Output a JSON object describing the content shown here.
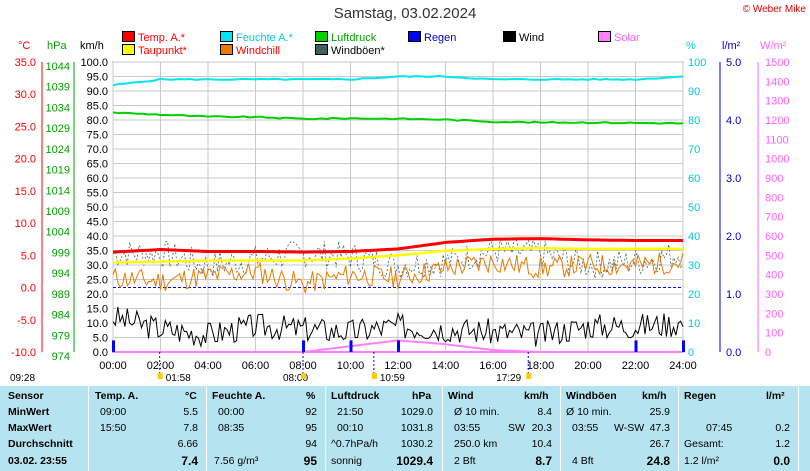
{
  "title": "Samstag, 03.02.2024",
  "copyright": "© Weber Mike",
  "legend": [
    {
      "label": "Temp. A.*",
      "color": "#ff0000",
      "text_color": "#ff0000"
    },
    {
      "label": "Feuchte A.*",
      "color": "#00e5ee",
      "text_color": "#00c8e0"
    },
    {
      "label": "Luftdruck",
      "color": "#00d000",
      "text_color": "#00a000"
    },
    {
      "label": "Regen",
      "color": "#0000ff",
      "text_color": "#0000d0"
    },
    {
      "label": "Wind",
      "color": "#000000",
      "text_color": "#000000"
    },
    {
      "label": "Solar",
      "color": "#ff80ff",
      "text_color": "#ff60ff"
    },
    {
      "label": "Taupunkt*",
      "color": "#ffff00",
      "text_color": "#ff0000"
    },
    {
      "label": "Windchill",
      "color": "#e87c00",
      "text_color": "#ff0000"
    },
    {
      "label": "Windböen*",
      "color": "#406060",
      "text_color": "#000000"
    }
  ],
  "units": {
    "temp": "°C",
    "press": "hPa",
    "wind": "km/h",
    "hum": "%",
    "rain": "l/m²",
    "solar": "W/m²"
  },
  "axis_labels": {
    "temp": [
      "35.0",
      "30.0",
      "25.0",
      "20.0",
      "15.0",
      "10.0",
      "5.0",
      "0.0",
      "-5.0",
      "-10.0"
    ],
    "press": [
      "1044",
      "1039",
      "1034",
      "1029",
      "1024",
      "1019",
      "1014",
      "1009",
      "1004",
      "999",
      "994",
      "989",
      "984",
      "979",
      "974"
    ],
    "wind": [
      "100.0",
      "95.0",
      "90.0",
      "85.0",
      "80.0",
      "75.0",
      "70.0",
      "65.0",
      "60.0",
      "55.0",
      "50.0",
      "45.0",
      "40.0",
      "35.0",
      "30.0",
      "25.0",
      "20.0",
      "15.0",
      "10.0",
      "5.0",
      "0.0"
    ],
    "hum": [
      "100",
      "90",
      "80",
      "70",
      "60",
      "50",
      "40",
      "30",
      "20",
      "10",
      "0"
    ],
    "rain": [
      "5.0",
      "4.0",
      "3.0",
      "2.0",
      "1.0",
      "0.0"
    ],
    "solar": [
      "1500",
      "1400",
      "1300",
      "1200",
      "1100",
      "1000",
      "900",
      "800",
      "700",
      "600",
      "500",
      "400",
      "300",
      "200",
      "100",
      "0"
    ]
  },
  "time_labels": [
    "00:00",
    "02:00",
    "04:00",
    "06:00",
    "08:00",
    "10:00",
    "12:00",
    "14:00",
    "16:00",
    "18:00",
    "20:00",
    "22:00",
    "24:00"
  ],
  "markers": {
    "a": "09:28",
    "b": "01:58",
    "c": "08:00",
    "d": "10:59",
    "e": "17:29"
  },
  "chart_data": {
    "type": "line",
    "x_range": [
      "00:00",
      "24:00"
    ],
    "ylim_wind": [
      0,
      100
    ],
    "ylim_temp": [
      -10,
      35
    ],
    "ylim_press": [
      974,
      1044
    ],
    "ylim_hum": [
      0,
      100
    ],
    "ylim_rain": [
      0,
      5
    ],
    "ylim_solar": [
      0,
      1500
    ],
    "x_hours": [
      0,
      2,
      4,
      6,
      8,
      10,
      12,
      14,
      16,
      18,
      20,
      22,
      24
    ],
    "series": [
      {
        "name": "Temp. A.*",
        "axis": "temp",
        "values": [
          5.5,
          5.9,
          5.6,
          5.6,
          5.5,
          5.6,
          6.0,
          7.0,
          7.5,
          7.6,
          7.4,
          7.3,
          7.3
        ]
      },
      {
        "name": "Taupunkt*",
        "axis": "temp",
        "values": [
          3.9,
          4.0,
          4.2,
          4.2,
          4.2,
          4.5,
          5.0,
          5.7,
          6.0,
          6.1,
          6.0,
          6.0,
          6.0
        ]
      },
      {
        "name": "Windchill",
        "axis": "temp",
        "values": [
          1.5,
          1.0,
          1.8,
          2.5,
          0.5,
          2.0,
          1.5,
          3.0,
          4.0,
          3.0,
          3.5,
          3.5,
          4.0
        ]
      },
      {
        "name": "Feuchte A.*",
        "axis": "hum",
        "values": [
          92,
          94,
          94,
          94,
          94,
          94,
          95,
          95,
          94,
          94,
          94,
          94,
          95
        ]
      },
      {
        "name": "Luftdruck",
        "axis": "press",
        "values": [
          1031.8,
          1031.3,
          1030.8,
          1030.7,
          1030.3,
          1030.4,
          1030.3,
          1030.1,
          1029.6,
          1029.4,
          1029.4,
          1029.3,
          1029.2
        ]
      },
      {
        "name": "Wind",
        "axis": "wind",
        "values": [
          12,
          8,
          6,
          9,
          8,
          7,
          9,
          8,
          7,
          6,
          9,
          9,
          10
        ]
      },
      {
        "name": "Windböen*",
        "axis": "wind",
        "values": [
          34,
          34,
          30,
          32,
          34,
          33,
          30,
          31,
          35,
          34,
          30,
          31,
          34
        ]
      },
      {
        "name": "Solar",
        "axis": "solar",
        "values": [
          0,
          0,
          0,
          0,
          0,
          30,
          60,
          40,
          10,
          0,
          0,
          0,
          0
        ]
      },
      {
        "name": "Regen",
        "axis": "rain",
        "values": [
          0.2,
          0,
          0,
          0,
          0.2,
          0.2,
          0.2,
          0,
          0,
          0,
          0,
          0.2,
          0.2
        ]
      }
    ]
  },
  "stats": {
    "col_sensor": {
      "h": "Sensor",
      "r1": "MinWert",
      "r2": "MaxWert",
      "r3": "Durchschnitt",
      "r4": "03.02. 23:55"
    },
    "temp": {
      "h": "Temp. A.",
      "u": "°C",
      "t1": "09:00",
      "v1": "5.5",
      "t2": "15:50",
      "v2": "7.8",
      "v3": "6.66",
      "v4": "7.4"
    },
    "hum": {
      "h": "Feuchte A.",
      "u": "%",
      "t1": "00:00",
      "v1": "92",
      "t2": "08:35",
      "v2": "95",
      "v3": "94",
      "t4": "7.56 g/m³",
      "v4": "95"
    },
    "press": {
      "h": "Luftdruck",
      "u": "hPa",
      "t1": "21:50",
      "v1": "1029.0",
      "t2": "00:10",
      "v2": "1031.8",
      "t3": "^0.7hPa/h",
      "v3": "1030.2",
      "t4": "sonnig",
      "v4": "1029.4"
    },
    "wind": {
      "h": "Wind",
      "u": "km/h",
      "t1": "Ø 10 min.",
      "v1": "8.4",
      "t2": "03:55",
      "d2": "SW",
      "v2": "20.3",
      "t3": "250.0 km",
      "v3": "10.4",
      "t4": "2 Bft",
      "v4": "8.7"
    },
    "gust": {
      "h": "Windböen",
      "u": "km/h",
      "t1": "Ø 10 min.",
      "v1": "25.9",
      "t2": "03:55",
      "d2": "W-SW",
      "v2": "47.3",
      "v3": "26.7",
      "t4": "4 Bft",
      "v4": "24.8"
    },
    "rain": {
      "h": "Regen",
      "u": "l/m²",
      "t2": "07:45",
      "v2": "0.2",
      "t3": "Gesamt:",
      "v3": "1.2",
      "t4": "1.2 l/m²",
      "v4": "0.0"
    }
  }
}
